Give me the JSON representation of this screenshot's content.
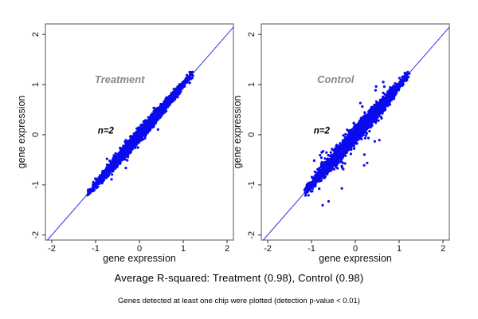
{
  "figure": {
    "background": "#ffffff",
    "captions": {
      "r_squared": "Average R-squared: Treatment (0.98), Control (0.98)",
      "footnote": "Genes detected at least one chip were plotted (detection p-value < 0.01)"
    }
  },
  "chart_data": [
    {
      "type": "scatter",
      "panel": "treatment",
      "title": "Treatment",
      "annotation": "n=2",
      "xlabel": "gene expression",
      "ylabel": "gene expression",
      "xlim": [
        -2.145,
        2.145
      ],
      "ylim": [
        -2.1,
        2.21
      ],
      "xticks": [
        -2,
        -1,
        0,
        1,
        2
      ],
      "yticks": [
        -2,
        -1,
        0,
        1,
        2
      ],
      "grid": false,
      "legend": null,
      "identity_line": true,
      "r_squared": 0.98,
      "n_chips": 2,
      "colors": {
        "points": "#0a0aee",
        "line": "#3030e8",
        "title": "#898989",
        "axis_box": "#7d7d7d",
        "text": "#111111"
      },
      "title_pos": [
        -0.45,
        1.03
      ],
      "annotation_pos": [
        -0.95,
        0.02
      ],
      "cloud": {
        "n_points": 3200,
        "diagonal_range": [
          -1.16,
          1.22
        ],
        "diagonal_sd": 0.5,
        "noise_sd": 0.045,
        "outliers": 9,
        "outlier_min_dev": 0.12,
        "outlier_max_dev": 0.42,
        "outlier_below_frac": 0.45,
        "seed": 11
      }
    },
    {
      "type": "scatter",
      "panel": "control",
      "title": "Control",
      "annotation": "n=2",
      "xlabel": "gene expression",
      "ylabel": "gene expression",
      "xlim": [
        -2.145,
        2.145
      ],
      "ylim": [
        -2.1,
        2.21
      ],
      "xticks": [
        -2,
        -1,
        0,
        1,
        2
      ],
      "yticks": [
        -2,
        -1,
        0,
        1,
        2
      ],
      "grid": false,
      "legend": null,
      "identity_line": true,
      "r_squared": 0.98,
      "n_chips": 2,
      "colors": {
        "points": "#0a0aee",
        "line": "#3030e8",
        "title": "#898989",
        "axis_box": "#7d7d7d",
        "text": "#111111"
      },
      "title_pos": [
        -0.45,
        1.03
      ],
      "annotation_pos": [
        -0.95,
        0.02
      ],
      "cloud": {
        "n_points": 3200,
        "diagonal_range": [
          -1.14,
          1.22
        ],
        "diagonal_sd": 0.5,
        "noise_sd": 0.06,
        "outliers": 60,
        "outlier_min_dev": 0.1,
        "outlier_max_dev": 0.8,
        "outlier_below_frac": 0.6,
        "seed": 99
      }
    }
  ]
}
